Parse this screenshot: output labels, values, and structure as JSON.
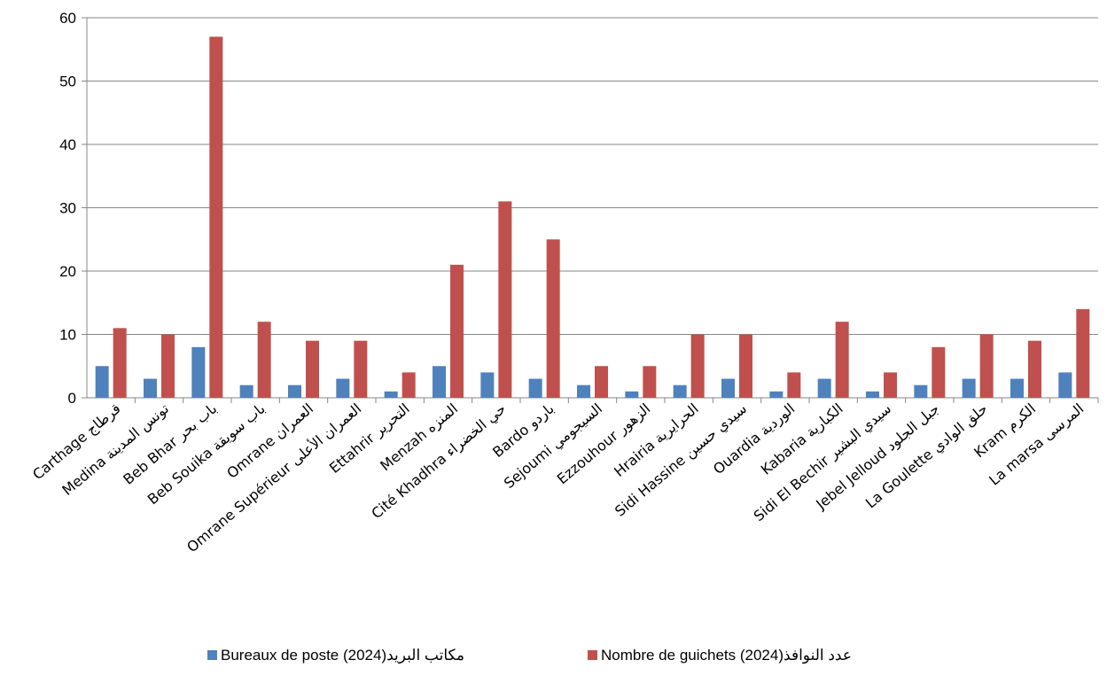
{
  "chart_data": {
    "type": "bar",
    "categories": [
      "Carthage  قرطاج",
      "Medina  تونس المدينة",
      "Beb Bhar  باب بحر",
      "Beb Souika  باب سويقة",
      "Omrane  العمران",
      "Omrane Supérieur  العمران الأعلى",
      "Ettahrir  التحرير",
      "Menzah  المنزه",
      "Cité Khadhra  حي الخضراء",
      "Bardo  باردو",
      "Sejoumi  السيجومي",
      "Ezzouhour  الزهور",
      "Hrairia  الحرايرية",
      "Sidi Hassine  سيدي حسين",
      "Ouardia  الوردية",
      "Kabaria  الكبارية",
      "Sidi El Bechir  سيدي البشير",
      "Jebel Jelloud  جبل الجلود",
      "La Goulette  حلق الوادي",
      "Kram  الكرم",
      "La marsa  المرسى"
    ],
    "series": [
      {
        "name": "Bureaux de poste (2024)مكاتب البريد",
        "color": "#4F81BD",
        "values": [
          5,
          3,
          8,
          2,
          2,
          3,
          1,
          5,
          4,
          3,
          2,
          1,
          2,
          3,
          1,
          3,
          1,
          2,
          3,
          3,
          4
        ]
      },
      {
        "name": "Nombre de guichets (2024)عدد النوافذ",
        "color": "#C0504D",
        "values": [
          11,
          10,
          57,
          12,
          9,
          9,
          4,
          21,
          31,
          25,
          5,
          5,
          10,
          10,
          4,
          12,
          4,
          8,
          10,
          9,
          14
        ]
      }
    ],
    "ylim": [
      0,
      60
    ],
    "yticks": [
      0,
      10,
      20,
      30,
      40,
      50,
      60
    ],
    "grid": true,
    "legend": "bottom",
    "title": "",
    "xlabel": "",
    "ylabel": ""
  }
}
